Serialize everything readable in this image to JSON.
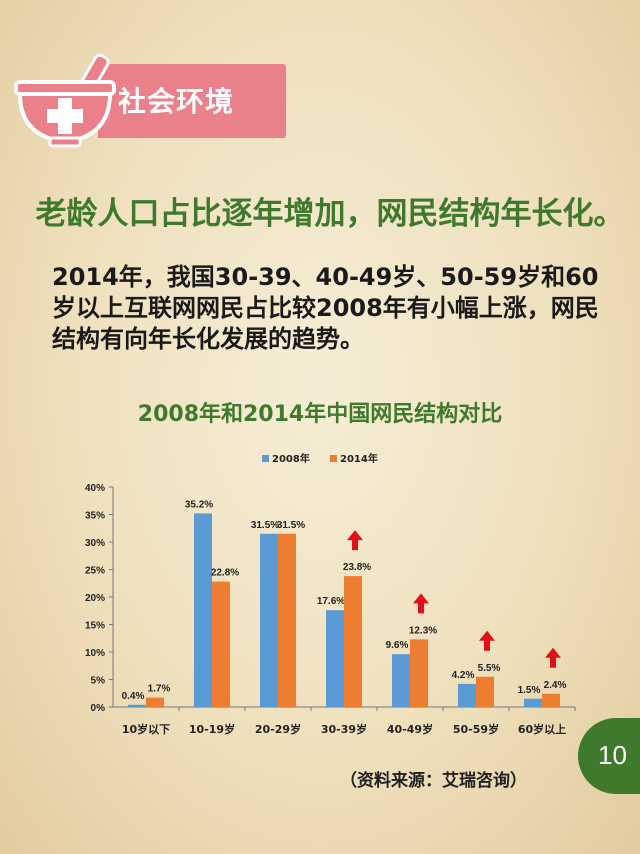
{
  "header": {
    "title": "社会环境",
    "icon": "mortar-pestle-cross-icon"
  },
  "headline": "老龄人口占比逐年增加，网民结构年长化。",
  "body_text": "2014年，我国30-39、40-49岁、50-59岁和60岁以上互联网网民占比较2008年有小幅上涨，网民结构有向年长化发展的趋势。",
  "page_number": "10",
  "source": "（资料来源：艾瑞咨询）",
  "colors": {
    "s2008": "#5b9bd5",
    "s2014": "#ed7d31",
    "accent_green": "#3f7a2c",
    "header_pink": "#e9808a",
    "arrow_red": "#e0101a"
  },
  "chart_data": {
    "type": "bar",
    "title": "2008年和2014年中国网民结构对比",
    "categories": [
      "10岁以下",
      "10-19岁",
      "20-29岁",
      "30-39岁",
      "40-49岁",
      "50-59岁",
      "60岁以上"
    ],
    "series": [
      {
        "name": "2008年",
        "values": [
          0.4,
          35.2,
          31.5,
          17.6,
          9.6,
          4.2,
          1.5
        ],
        "labels": [
          "0.4%",
          "35.2%",
          "31.5%",
          "17.6%",
          "9.6%",
          "4.2%",
          "1.5%"
        ]
      },
      {
        "name": "2014年",
        "values": [
          1.7,
          22.8,
          31.5,
          23.8,
          12.3,
          5.5,
          2.4
        ],
        "labels": [
          "1.7%",
          "22.8%",
          "31.5%",
          "23.8%",
          "12.3%",
          "5.5%",
          "2.4%"
        ]
      }
    ],
    "yticks": [
      "0%",
      "5%",
      "10%",
      "15%",
      "20%",
      "25%",
      "30%",
      "35%",
      "40%"
    ],
    "ylim": [
      0,
      40
    ],
    "legend_position": "top-center",
    "grid": false,
    "up_arrows_on": [
      "30-39岁",
      "40-49岁",
      "50-59岁",
      "60岁以上"
    ]
  }
}
